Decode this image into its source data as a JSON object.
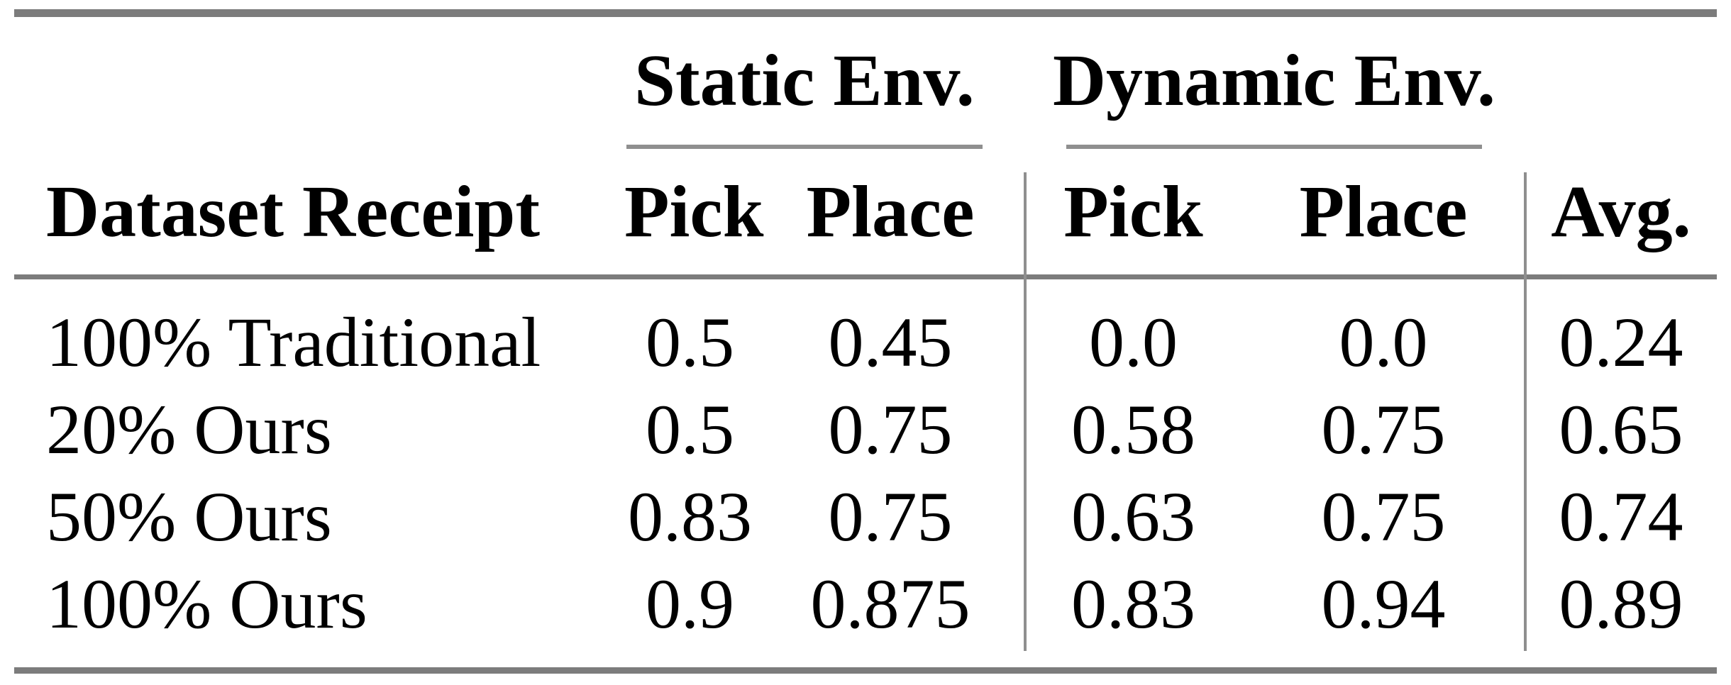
{
  "table": {
    "column_groups": {
      "static": "Static Env.",
      "dynamic": "Dynamic Env."
    },
    "headers": {
      "dataset": "Dataset Receipt",
      "static_pick": "Pick",
      "static_place": "Place",
      "dynamic_pick": "Pick",
      "dynamic_place": "Place",
      "avg": "Avg."
    },
    "rows": [
      {
        "label": "100% Traditional",
        "static_pick": "0.5",
        "static_place": "0.45",
        "dynamic_pick": "0.0",
        "dynamic_place": "0.0",
        "avg": "0.24"
      },
      {
        "label": "20% Ours",
        "static_pick": "0.5",
        "static_place": "0.75",
        "dynamic_pick": "0.58",
        "dynamic_place": "0.75",
        "avg": "0.65"
      },
      {
        "label": "50% Ours",
        "static_pick": "0.83",
        "static_place": "0.75",
        "dynamic_pick": "0.63",
        "dynamic_place": "0.75",
        "avg": "0.74"
      },
      {
        "label": "100% Ours",
        "static_pick": "0.9",
        "static_place": "0.875",
        "dynamic_pick": "0.83",
        "dynamic_place": "0.94",
        "avg": "0.89"
      }
    ],
    "rule_colors": {
      "thick_rule": "#7c7c7c",
      "thin_rule": "#8f8f8f"
    }
  }
}
